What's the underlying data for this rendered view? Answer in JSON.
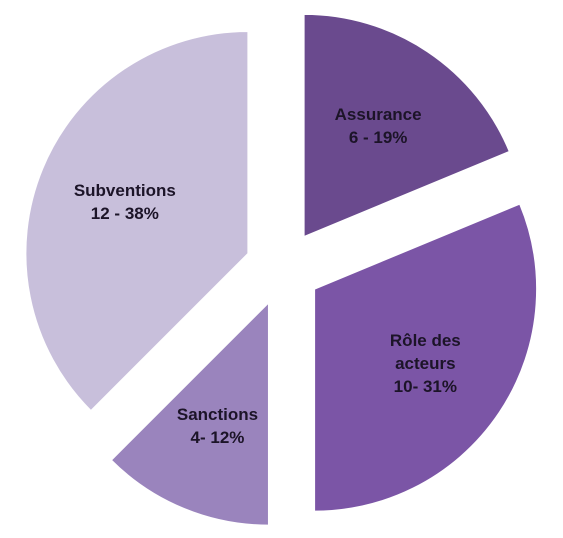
{
  "chart_data": {
    "type": "pie",
    "categories": [
      "Assurance",
      "Rôle des acteurs",
      "Sanctions",
      "Subventions"
    ],
    "values": [
      6,
      10,
      4,
      12
    ],
    "value_labels": [
      "6 - 19%",
      "10- 31%",
      "4- 12%",
      "12 - 38%"
    ],
    "colors": [
      "#6a4a8e",
      "#7b55a6",
      "#9a84bd",
      "#c8bfdb"
    ]
  }
}
